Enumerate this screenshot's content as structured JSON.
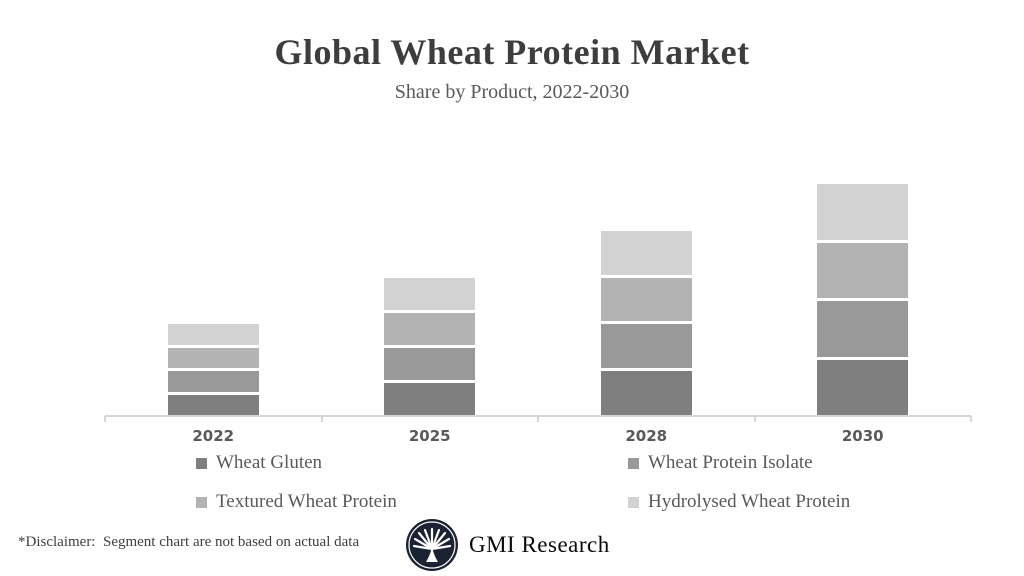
{
  "header": {
    "title": "Global Wheat Protein Market",
    "subtitle": "Share by Product, 2022-2030"
  },
  "chart_data": {
    "type": "bar",
    "stacked": true,
    "title": "Global Wheat Protein Market",
    "subtitle": "Share by Product, 2022-2030",
    "categories": [
      "2022",
      "2025",
      "2028",
      "2030"
    ],
    "series": [
      {
        "name": "Wheat Gluten",
        "color": "#7f7f7f",
        "values": [
          10,
          15,
          20,
          25
        ]
      },
      {
        "name": "Wheat Protein Isolate",
        "color": "#999999",
        "values": [
          10,
          15,
          20,
          25
        ]
      },
      {
        "name": "Textured Wheat Protein",
        "color": "#b3b3b3",
        "values": [
          10,
          15,
          20,
          25
        ]
      },
      {
        "name": "Hydrolysed Wheat Protein",
        "color": "#d2d2d2",
        "values": [
          10,
          15,
          20,
          25
        ]
      }
    ],
    "stack_totals": [
      40,
      60,
      80,
      100
    ],
    "ylim": [
      0,
      100
    ],
    "y_axis_visible": false,
    "gridlines": false,
    "legend_position": "bottom",
    "axis_color": "#d6d6d6",
    "label_color": "#595959"
  },
  "footer": {
    "disclaimer": "*Disclaimer:  Segment chart are not based on actual data",
    "brand": "GMI Research",
    "logo_icon": "palmetto-fan-icon",
    "logo_bg_color": "#1b2232"
  }
}
